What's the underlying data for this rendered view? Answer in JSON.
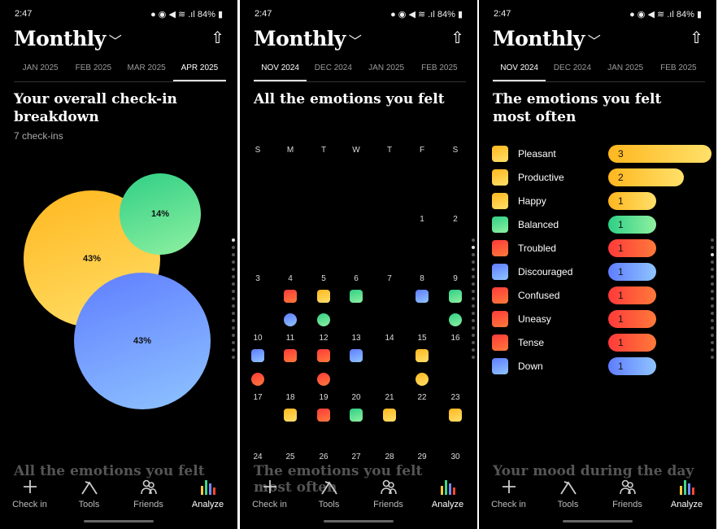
{
  "status": {
    "time": "2:47",
    "battery": "84%"
  },
  "colors": {
    "yellow": "#ffc93c",
    "green": "#3fd68c",
    "red": "#ff4636",
    "blue": "#6f8dff"
  },
  "screens": [
    {
      "title": "Monthly",
      "tabs": [
        "JAN 2025",
        "FEB 2025",
        "MAR 2025",
        "APR 2025"
      ],
      "active_tab": 3,
      "heading": "Your overall check-in breakdown",
      "subtitle": "7 check-ins",
      "bubbles": [
        {
          "label": "43%",
          "color": "yellow"
        },
        {
          "label": "14%",
          "color": "green"
        },
        {
          "label": "43%",
          "color": "blue"
        }
      ],
      "next_heading": "All the emotions you felt"
    },
    {
      "title": "Monthly",
      "tabs": [
        "NOV 2024",
        "DEC 2024",
        "JAN 2025",
        "FEB 2025"
      ],
      "active_tab": 0,
      "heading": "All the emotions you felt",
      "weekdays": [
        "S",
        "M",
        "T",
        "W",
        "T",
        "F",
        "S"
      ],
      "first_weekday": 5,
      "days_in_month": 30,
      "entries": {
        "4": [
          "red",
          "blue"
        ],
        "5": [
          "yellow",
          "green"
        ],
        "6": [
          "green"
        ],
        "8": [
          "blue"
        ],
        "9": [
          "green",
          "green"
        ],
        "10": [
          "blue",
          "red"
        ],
        "11": [
          "red"
        ],
        "12": [
          "red",
          "red"
        ],
        "13": [
          "blue"
        ],
        "15": [
          "yellow",
          "yellow"
        ],
        "18": [
          "yellow"
        ],
        "19": [
          "red"
        ],
        "20": [
          "green"
        ],
        "21": [
          "yellow"
        ],
        "23": [
          "yellow"
        ]
      },
      "next_heading": "The emotions you felt most often"
    },
    {
      "title": "Monthly",
      "tabs": [
        "NOV 2024",
        "DEC 2024",
        "JAN 2025",
        "FEB 2025"
      ],
      "active_tab": 0,
      "heading": "The emotions you felt most often",
      "emotions": [
        {
          "name": "Pleasant",
          "count": 3,
          "color": "yellow"
        },
        {
          "name": "Productive",
          "count": 2,
          "color": "yellow"
        },
        {
          "name": "Happy",
          "count": 1,
          "color": "yellow"
        },
        {
          "name": "Balanced",
          "count": 1,
          "color": "green"
        },
        {
          "name": "Troubled",
          "count": 1,
          "color": "red"
        },
        {
          "name": "Discouraged",
          "count": 1,
          "color": "blue"
        },
        {
          "name": "Confused",
          "count": 1,
          "color": "red"
        },
        {
          "name": "Uneasy",
          "count": 1,
          "color": "red"
        },
        {
          "name": "Tense",
          "count": 1,
          "color": "red"
        },
        {
          "name": "Down",
          "count": 1,
          "color": "blue"
        }
      ],
      "next_heading": "Your mood during the day"
    }
  ],
  "nav": [
    "Check in",
    "Tools",
    "Friends",
    "Analyze"
  ]
}
